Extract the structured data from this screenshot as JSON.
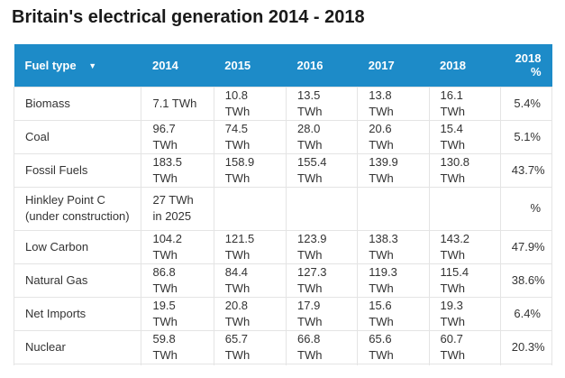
{
  "title": "Britain's electrical generation 2014 - 2018",
  "colors": {
    "header_bg": "#1d8bc8",
    "header_text": "#ffffff",
    "cell_text": "#333333",
    "border": "#e4e4e4"
  },
  "header": {
    "fuel_label": "Fuel type",
    "sort_icon": "▼",
    "years": [
      "2014",
      "2015",
      "2016",
      "2017",
      "2018"
    ],
    "pct_line1": "2018",
    "pct_line2": "%"
  },
  "chart_data": {
    "type": "table",
    "title": "Britain's electrical generation 2014 - 2018",
    "columns": [
      "Fuel type",
      "2014",
      "2015",
      "2016",
      "2017",
      "2018",
      "2018 %"
    ],
    "rows": [
      {
        "cells": [
          "Biomass",
          "7.1 TWh",
          "10.8 TWh",
          "13.5 TWh",
          "13.8 TWh",
          "16.1 TWh",
          "5.4%"
        ]
      },
      {
        "cells": [
          "Coal",
          "96.7 TWh",
          "74.5 TWh",
          "28.0 TWh",
          "20.6 TWh",
          "15.4 TWh",
          "5.1%"
        ]
      },
      {
        "cells": [
          "Fossil Fuels",
          "183.5 TWh",
          "158.9 TWh",
          "155.4 TWh",
          "139.9 TWh",
          "130.8 TWh",
          "43.7%"
        ]
      },
      {
        "cells": [
          "Hinkley Point C",
          "27 TWh in 2025",
          "",
          "",
          "",
          "",
          "%"
        ],
        "sub": "(under construction)"
      },
      {
        "cells": [
          "Low Carbon",
          "104.2 TWh",
          "121.5 TWh",
          "123.9 TWh",
          "138.3 TWh",
          "143.2 TWh",
          "47.9%"
        ]
      },
      {
        "cells": [
          "Natural Gas",
          "86.8 TWh",
          "84.4 TWh",
          "127.3 TWh",
          "119.3 TWh",
          "115.4 TWh",
          "38.6%"
        ]
      },
      {
        "cells": [
          "Net Imports",
          "19.5 TWh",
          "20.8 TWh",
          "17.9 TWh",
          "15.6 TWh",
          "19.3 TWh",
          "6.4%"
        ]
      },
      {
        "cells": [
          "Nuclear",
          "59.8 TWh",
          "65.7 TWh",
          "66.8 TWh",
          "65.6 TWh",
          "60.7 TWh",
          "20.3%"
        ]
      }
    ]
  }
}
